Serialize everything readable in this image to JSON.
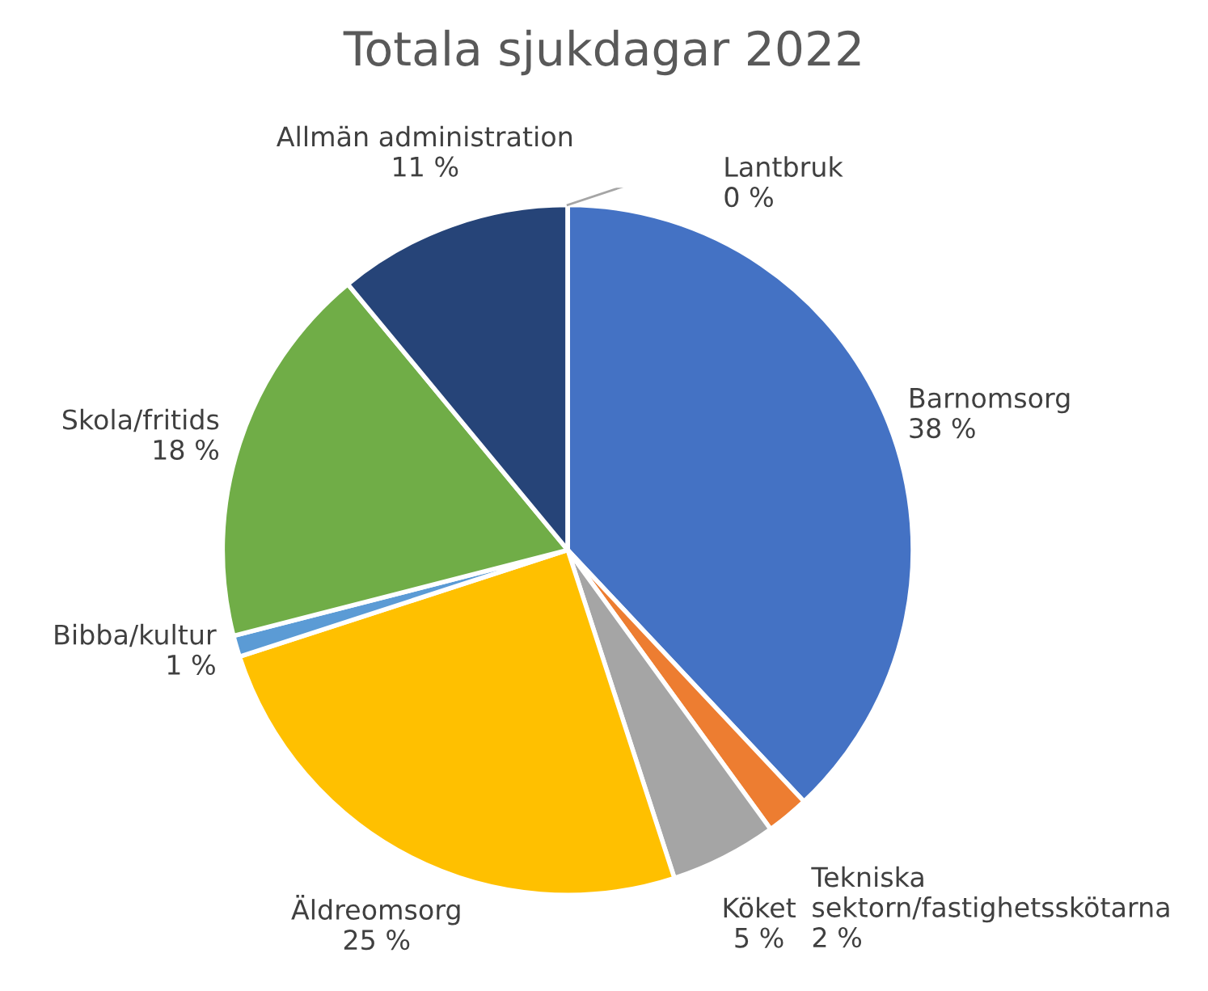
{
  "chart_data": {
    "type": "pie",
    "title": "Totala sjukdagar 2022",
    "categories": [
      "Barnomsorg",
      "Tekniska sektorn/fastighetsskötarna",
      "Köket",
      "Äldreomsorg",
      "Bibba/kultur",
      "Skola/fritids",
      "Allmän administration",
      "Lantbruk"
    ],
    "values": [
      38,
      2,
      5,
      25,
      1,
      18,
      11,
      0
    ],
    "value_labels": [
      "38 %",
      "2 %",
      "5 %",
      "25 %",
      "1 %",
      "18 %",
      "11 %",
      "0 %"
    ],
    "colors": [
      "#4472c4",
      "#ed7d31",
      "#a5a5a5",
      "#ffc000",
      "#5b9bd5",
      "#70ad47",
      "#264478",
      "#9e480e"
    ],
    "legend": false
  }
}
